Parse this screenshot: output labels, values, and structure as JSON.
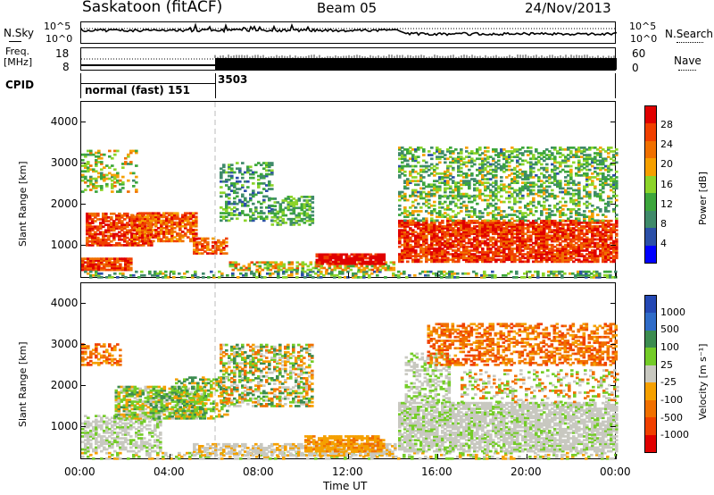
{
  "header": {
    "station": "Saskatoon (fitACF)",
    "beam": "Beam 05",
    "date": "24/Nov/2013"
  },
  "noise_panel": {
    "left_label": "N.Sky",
    "right_label": "N.Search",
    "left_ticks": [
      "10^5",
      "10^0"
    ],
    "right_ticks": [
      "10^5",
      "10^0"
    ]
  },
  "freq_panel": {
    "left_label_1": "Freq.",
    "left_label_2": "[MHz]",
    "right_label": "Nave",
    "left_ticks": [
      "18",
      "8"
    ],
    "right_ticks": [
      "60",
      "0"
    ]
  },
  "cpid_panel": {
    "label": "CPID",
    "segments": [
      {
        "start_hour": 0,
        "text": "normal (fast) 151"
      },
      {
        "start_hour": 6,
        "text": "3503"
      }
    ]
  },
  "time_axis": {
    "label": "Time UT",
    "ticks": [
      "00:00",
      "04:00",
      "08:00",
      "12:00",
      "16:00",
      "20:00",
      "00:00"
    ]
  },
  "colors": {
    "power": [
      "#0000ff",
      "#2b4fa8",
      "#3f8a6a",
      "#3ca63c",
      "#8cd42a",
      "#f5a000",
      "#f07000",
      "#f04000",
      "#e00000"
    ],
    "velocity": [
      "#2448b4",
      "#2f6cc8",
      "#3c8c50",
      "#74cc28",
      "#c8c8c0",
      "#f5a000",
      "#f07000",
      "#f04000",
      "#e00000"
    ]
  },
  "chart_data": [
    {
      "type": "heatmap",
      "name": "power",
      "ylabel": "Slant Range [km]",
      "xlabel": "",
      "xlim": [
        0,
        24
      ],
      "ylim": [
        200,
        4500
      ],
      "yticks": [
        "1000",
        "2000",
        "3000",
        "4000"
      ],
      "colorbar": {
        "label": "Power [dB]",
        "ticks": [
          "4",
          "8",
          "12",
          "16",
          "20",
          "24",
          "28"
        ]
      }
    },
    {
      "type": "heatmap",
      "name": "velocity",
      "ylabel": "Slant Range [km]",
      "xlabel": "Time UT",
      "xlim": [
        0,
        24
      ],
      "ylim": [
        200,
        4500
      ],
      "yticks": [
        "1000",
        "2000",
        "3000",
        "4000"
      ],
      "colorbar": {
        "label": "Velocity [m s⁻¹]",
        "ticks": [
          "1000",
          "500",
          "100",
          "25",
          "-25",
          "-100",
          "-500",
          "-1000"
        ]
      }
    }
  ]
}
